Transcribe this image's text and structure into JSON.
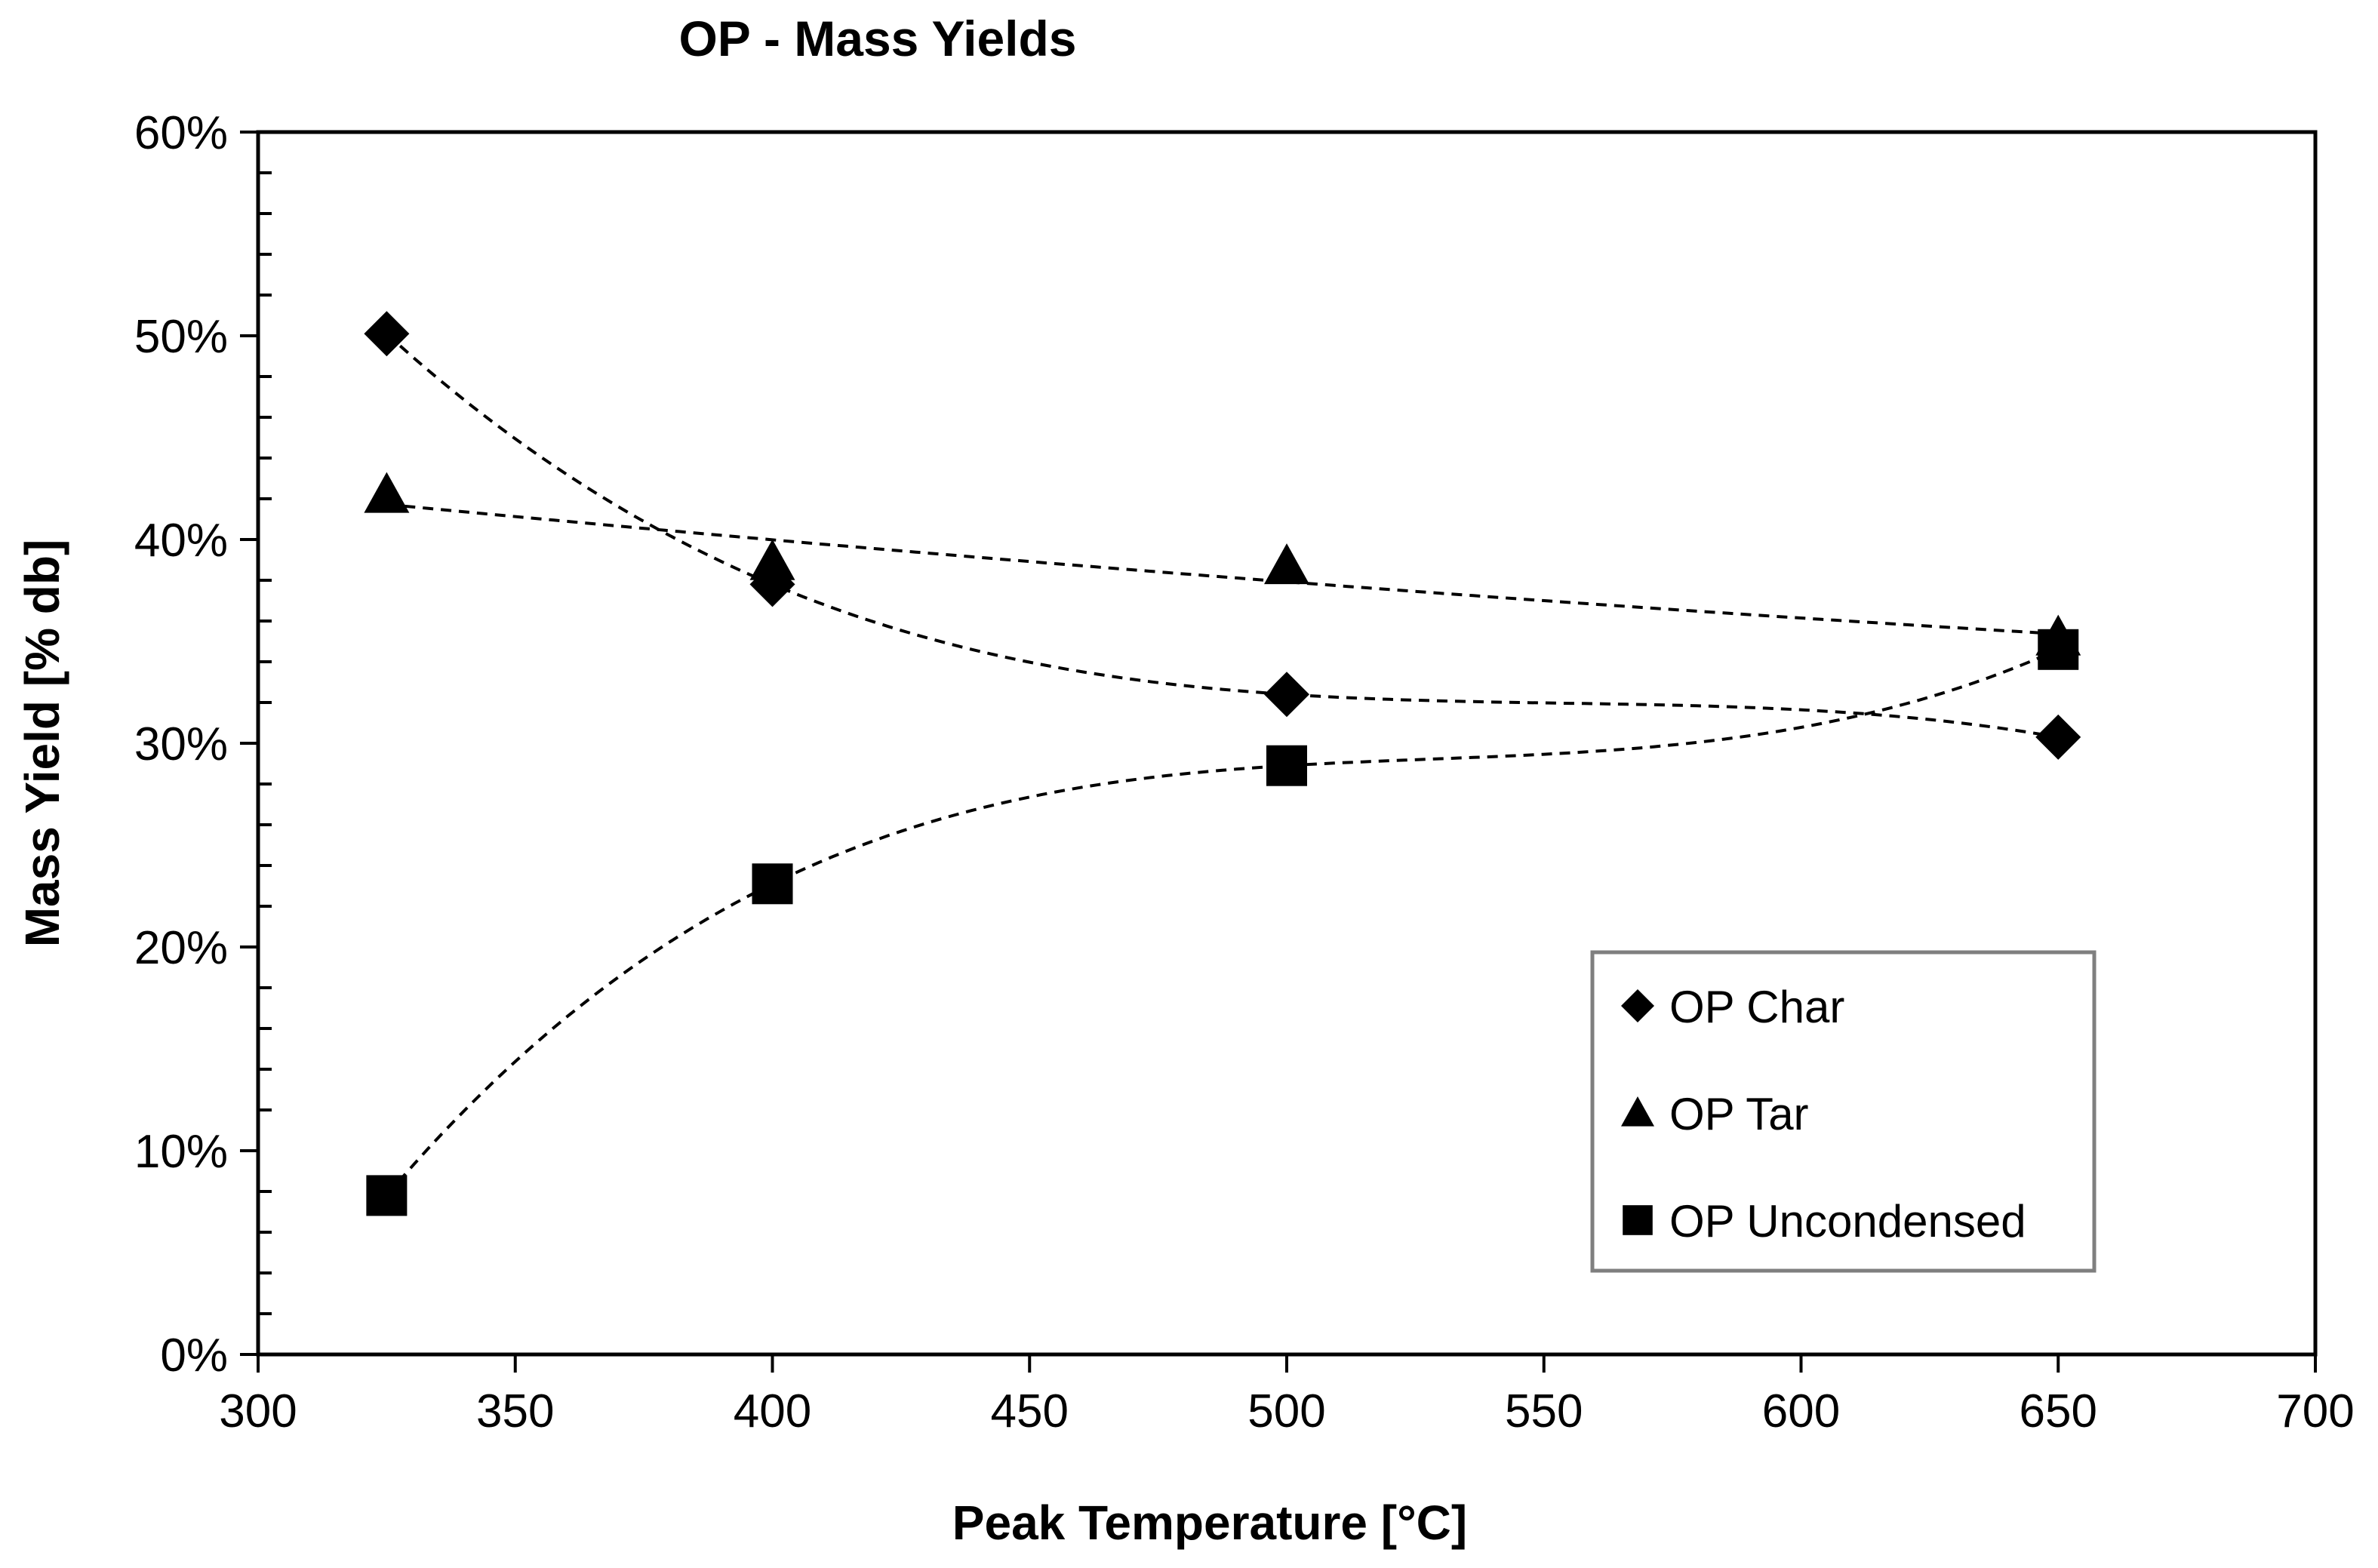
{
  "chart_data": {
    "type": "scatter",
    "title": "OP - Mass Yields",
    "xlabel": "Peak Temperature [°C]",
    "ylabel": "Mass  Yield [% db]",
    "xlim": [
      300,
      700
    ],
    "ylim": [
      0,
      60
    ],
    "x_ticks": [
      300,
      350,
      400,
      450,
      500,
      550,
      600,
      650,
      700
    ],
    "x_tick_labels": [
      "300",
      "350",
      "400",
      "450",
      "500",
      "550",
      "600",
      "650",
      "700"
    ],
    "y_ticks": [
      0,
      10,
      20,
      30,
      40,
      50,
      60
    ],
    "y_tick_labels": [
      "0%",
      "10%",
      "20%",
      "30%",
      "40%",
      "50%",
      "60%"
    ],
    "y_minor_step": 2,
    "grid": false,
    "legend_position": "bottom-right",
    "series": [
      {
        "name": "OP Char",
        "marker": "diamond",
        "color": "#000000",
        "x": [
          325,
          400,
          500,
          650
        ],
        "y": [
          50.1,
          37.8,
          32.4,
          30.3
        ],
        "trendline": "polynomial, dashed"
      },
      {
        "name": "OP Tar",
        "marker": "triangle",
        "color": "#000000",
        "x": [
          325,
          400,
          500,
          650
        ],
        "y": [
          42.2,
          38.9,
          38.7,
          35.2
        ],
        "trendline": "polynomial, dashed"
      },
      {
        "name": "OP Uncondensed",
        "marker": "square",
        "color": "#000000",
        "x": [
          325,
          400,
          500,
          650
        ],
        "y": [
          7.8,
          23.1,
          28.9,
          34.6
        ],
        "trendline": "polynomial, dashed"
      }
    ]
  }
}
